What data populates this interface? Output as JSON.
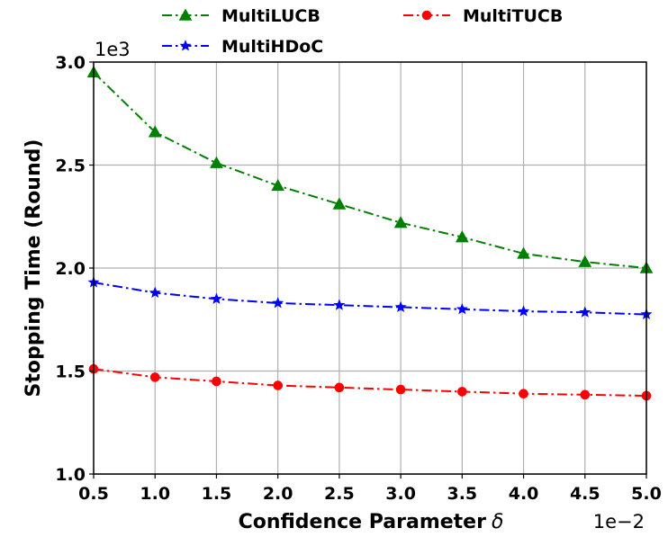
{
  "chart_data": {
    "type": "line",
    "xlabel": "Confidence Parameter",
    "xlabel_symbol": "δ",
    "ylabel": "Stopping Time (Round)",
    "x_multiplier": "1e−2",
    "y_multiplier": "1e3",
    "xlim": [
      0.5,
      5.0
    ],
    "ylim": [
      1.0,
      3.0
    ],
    "x": [
      0.5,
      1.0,
      1.5,
      2.0,
      2.5,
      3.0,
      3.5,
      4.0,
      4.5,
      5.0
    ],
    "x_ticks": [
      "0.5",
      "1.0",
      "1.5",
      "2.0",
      "2.5",
      "3.0",
      "3.5",
      "4.0",
      "4.5",
      "5.0"
    ],
    "y_ticks": [
      1.0,
      1.5,
      2.0,
      2.5,
      3.0
    ],
    "y_tick_labels": [
      "1.0",
      "1.5",
      "2.0",
      "2.5",
      "3.0"
    ],
    "grid": true,
    "legend_position": "top, above plot, two columns",
    "series": [
      {
        "name": "MultiLUCB",
        "color": "#008000",
        "marker": "triangle",
        "linestyle": "dash-dot",
        "values": [
          2.95,
          2.66,
          2.51,
          2.4,
          2.31,
          2.22,
          2.15,
          2.07,
          2.03,
          2.0
        ]
      },
      {
        "name": "MultiTUCB",
        "color": "#ff0000",
        "marker": "circle",
        "linestyle": "dash-dot",
        "values": [
          1.51,
          1.47,
          1.45,
          1.43,
          1.42,
          1.41,
          1.4,
          1.39,
          1.385,
          1.38
        ]
      },
      {
        "name": "MultiHDoC",
        "color": "#0000ff",
        "marker": "star",
        "linestyle": "dash-dot",
        "values": [
          1.93,
          1.88,
          1.85,
          1.83,
          1.82,
          1.81,
          1.8,
          1.79,
          1.785,
          1.775
        ]
      }
    ]
  }
}
